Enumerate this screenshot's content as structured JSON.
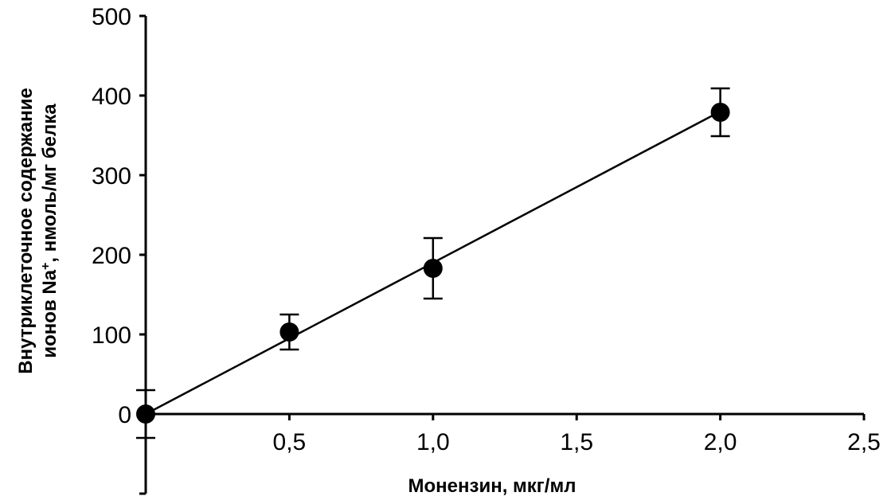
{
  "chart_data": {
    "type": "scatter",
    "title": "",
    "xlabel": "Монензин, мкг/мл",
    "ylabel_line1": "Внутриклеточное содержание",
    "ylabel_line2_prefix": "ионов Na",
    "ylabel_line2_sup": "+",
    "ylabel_line2_suffix": ", нмоль/мг белка",
    "xlim": [
      0,
      2.5
    ],
    "ylim": [
      -100,
      500
    ],
    "x_ticks": [
      0.5,
      1.0,
      1.5,
      2.0,
      2.5
    ],
    "x_tick_labels": [
      "0,5",
      "1,0",
      "1,5",
      "2,0",
      "2,5"
    ],
    "y_ticks": [
      0,
      100,
      200,
      300,
      400,
      500
    ],
    "y_tick_labels": [
      "0",
      "100",
      "200",
      "300",
      "400",
      "500"
    ],
    "points": [
      {
        "x": 0,
        "y": 0,
        "err": 30
      },
      {
        "x": 0.5,
        "y": 103,
        "err": 22
      },
      {
        "x": 1.0,
        "y": 183,
        "err": 38
      },
      {
        "x": 2.0,
        "y": 379,
        "err": 30
      }
    ],
    "trendline": {
      "x": [
        0,
        2.0
      ],
      "y": [
        0,
        380
      ]
    },
    "grid": false,
    "legend": "none",
    "colors": {
      "marker": "#000000",
      "line": "#000000"
    }
  }
}
